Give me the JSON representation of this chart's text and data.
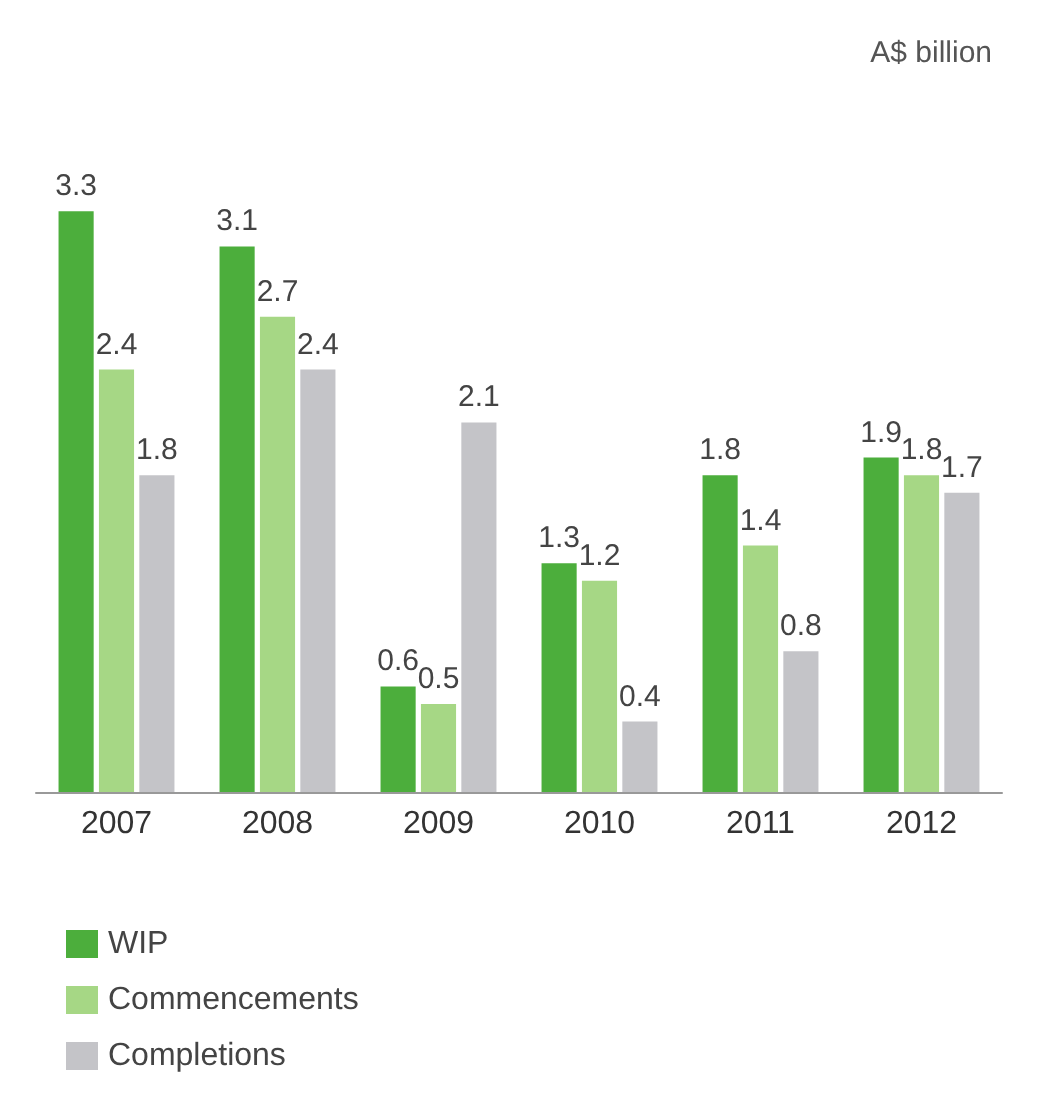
{
  "chart_data": {
    "type": "bar",
    "ylabel": "A$ billion",
    "categories": [
      "2007",
      "2008",
      "2009",
      "2010",
      "2011",
      "2012"
    ],
    "series": [
      {
        "name": "WIP",
        "color": "#4cae3c",
        "values": [
          3.3,
          3.1,
          0.6,
          1.3,
          1.8,
          1.9
        ]
      },
      {
        "name": "Commencements",
        "color": "#a6d785",
        "values": [
          2.4,
          2.7,
          0.5,
          1.2,
          1.4,
          1.8
        ]
      },
      {
        "name": "Completions",
        "color": "#c4c4c8",
        "values": [
          1.8,
          2.4,
          2.1,
          0.4,
          0.8,
          1.7
        ]
      }
    ],
    "data_labels": true,
    "legend": "bottom left"
  }
}
